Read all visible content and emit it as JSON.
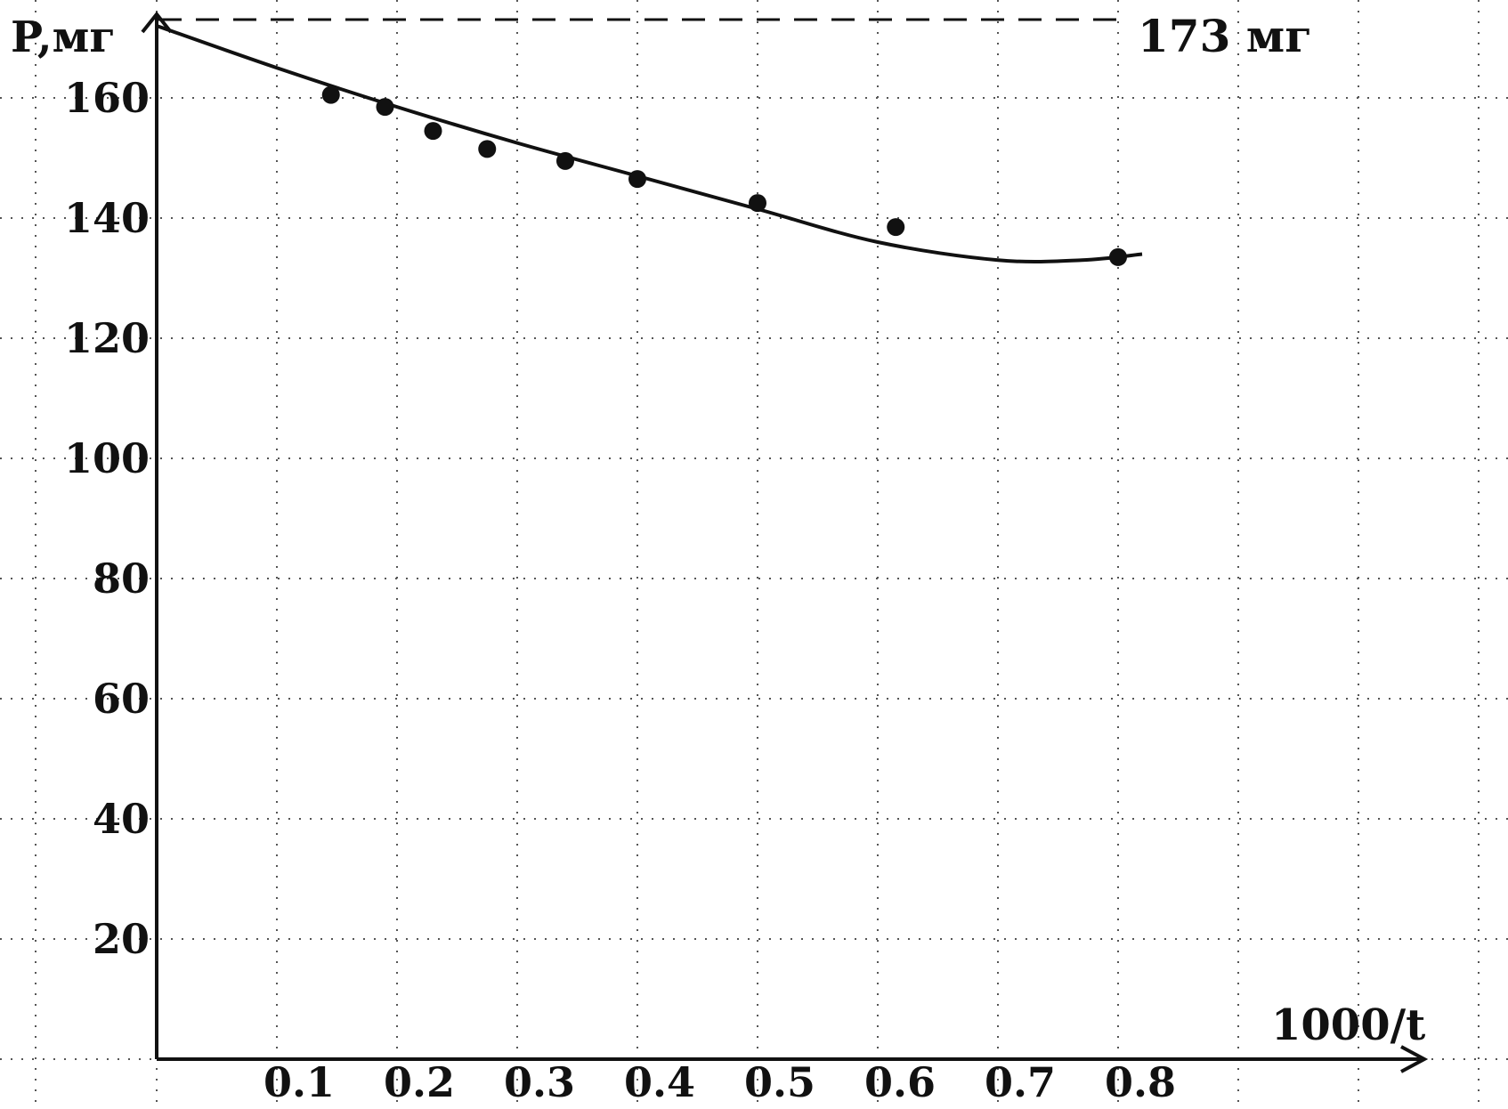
{
  "chart_data": {
    "type": "scatter",
    "xlabel": "1000/t",
    "ylabel": "P,мг",
    "x_ticks": [
      "0.1",
      "0.2",
      "0.3",
      "0.4",
      "0.5",
      "0.6",
      "0.7",
      "0.8"
    ],
    "y_ticks": [
      "20",
      "40",
      "60",
      "80",
      "100",
      "120",
      "140",
      "160"
    ],
    "xlim": [
      0,
      1.1
    ],
    "ylim": [
      0,
      175
    ],
    "grid": true,
    "reference_line": {
      "y": 173,
      "label": "173 мг"
    },
    "points": [
      {
        "x": 0.145,
        "y": 160.5
      },
      {
        "x": 0.19,
        "y": 158.5
      },
      {
        "x": 0.23,
        "y": 154.5
      },
      {
        "x": 0.275,
        "y": 151.5
      },
      {
        "x": 0.34,
        "y": 149.5
      },
      {
        "x": 0.4,
        "y": 146.5
      },
      {
        "x": 0.5,
        "y": 142.5
      },
      {
        "x": 0.615,
        "y": 138.5
      },
      {
        "x": 0.8,
        "y": 133.5
      }
    ],
    "fit_curve": [
      {
        "x": 0.0,
        "y": 172
      },
      {
        "x": 0.1,
        "y": 165
      },
      {
        "x": 0.2,
        "y": 158.5
      },
      {
        "x": 0.3,
        "y": 152.5
      },
      {
        "x": 0.4,
        "y": 147
      },
      {
        "x": 0.5,
        "y": 141.5
      },
      {
        "x": 0.6,
        "y": 136
      },
      {
        "x": 0.7,
        "y": 133
      },
      {
        "x": 0.77,
        "y": 133
      },
      {
        "x": 0.82,
        "y": 134
      }
    ]
  }
}
